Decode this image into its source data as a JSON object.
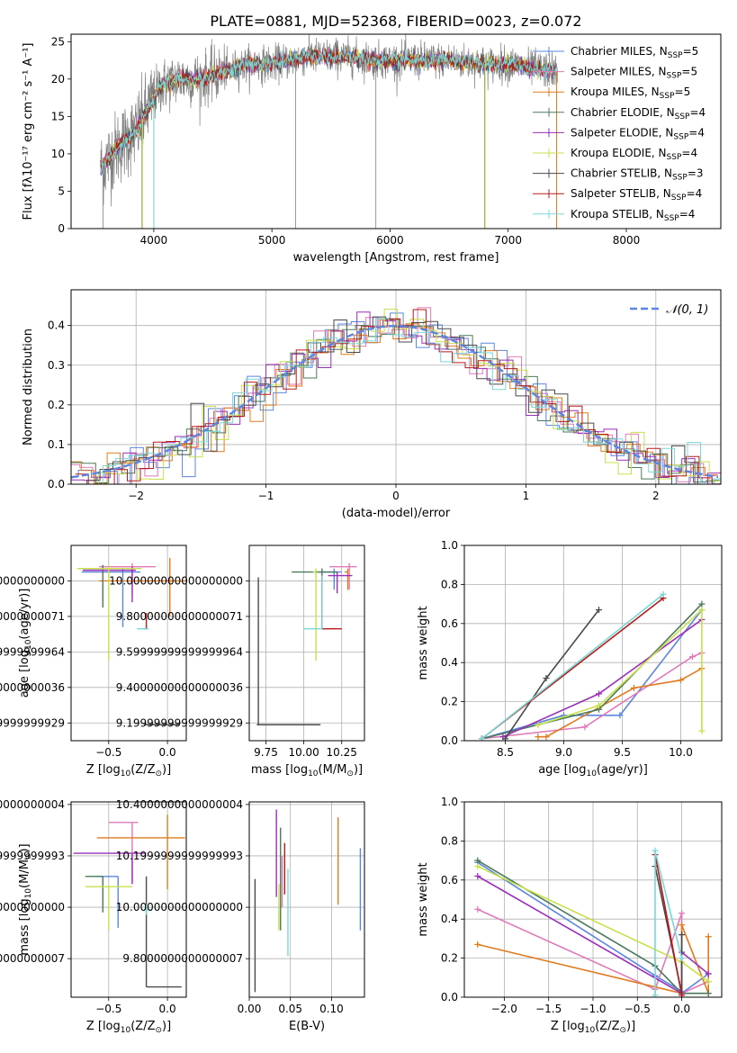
{
  "figure": {
    "title": "PLATE=0881, MJD=52368, FIBERID=0023, z=0.072"
  },
  "colors": {
    "Chabrier MILES": "#5b86e0",
    "Salpeter MILES": "#e07ab8",
    "Kroupa MILES": "#e07b1f",
    "Chabrier ELODIE": "#4a7a5a",
    "Salpeter ELODIE": "#9b2fb8",
    "Kroupa ELODIE": "#c8e04a",
    "Chabrier STELIB": "#4a4a4a",
    "Salpeter STELIB": "#b81a1a",
    "Kroupa STELIB": "#7ad8d8"
  },
  "chart_data": [
    {
      "type": "line",
      "xlabel": "wavelength [Angstrom, rest frame]",
      "ylabel": "Flux [fλ10⁻¹⁷ erg cm⁻² s⁻¹ A⁻¹]",
      "xlim": [
        3300,
        8800
      ],
      "ylim": [
        0,
        26
      ],
      "xticks": [
        4000,
        5000,
        6000,
        7000,
        8000
      ],
      "yticks": [
        0,
        5,
        10,
        15,
        20,
        25
      ],
      "grid": false,
      "legend_placement": "top-right",
      "legend": [
        "Chabrier MILES, N_SSP=5",
        "Salpeter MILES, N_SSP=5",
        "Kroupa MILES, N_SSP=5",
        "Chabrier ELODIE, N_SSP=4",
        "Salpeter ELODIE, N_SSP=4",
        "Kroupa ELODIE, N_SSP=4",
        "Chabrier STELIB, N_SSP=3",
        "Salpeter STELIB, N_SSP=4",
        "Kroupa STELIB, N_SSP=4"
      ],
      "continuum": {
        "x": [
          3550,
          3700,
          3850,
          3950,
          4050,
          4200,
          4400,
          4600,
          4800,
          5000,
          5300,
          5600,
          5900,
          6200,
          6500,
          6800,
          7000,
          7200,
          7400
        ],
        "y": [
          8,
          11,
          13,
          16,
          19,
          20,
          20,
          21,
          22,
          22,
          23,
          23,
          22.5,
          22.5,
          22.5,
          22,
          22,
          21.5,
          21
        ]
      },
      "spikes": [
        {
          "x": 3900,
          "y": 0
        },
        {
          "x": 4000,
          "y": 0
        },
        {
          "x": 5200,
          "y": 0
        },
        {
          "x": 5880,
          "y": 0
        },
        {
          "x": 6800,
          "y": 0
        },
        {
          "x": 7410,
          "y": 0
        },
        {
          "x": 3570,
          "y": 0
        }
      ]
    },
    {
      "type": "line",
      "xlabel": "(data-model)/error",
      "ylabel": "Normed distribution",
      "xlim": [
        -2.5,
        2.5
      ],
      "ylim": [
        0,
        0.49
      ],
      "xticks": [
        -2,
        -1,
        0,
        1,
        2
      ],
      "yticks": [
        0.0,
        0.1,
        0.2,
        0.3,
        0.4
      ],
      "grid": true,
      "legend_placement": "top-right",
      "legend": [
        "𝒩(0, 1)"
      ],
      "normal_curve": {
        "mean": 0,
        "sigma": 1
      }
    },
    {
      "type": "scatter",
      "xlabel": "Z [log10(Z/Z⊙)]",
      "ylabel": "age  [log10(age/yr)]",
      "xlim": [
        -0.82,
        0.16
      ],
      "ylim": [
        9.1,
        10.2
      ],
      "xticks": [
        -0.5,
        0.0
      ],
      "yticks": [
        9.2,
        9.4,
        9.6,
        9.8,
        10.0
      ],
      "grid": true,
      "points": [
        {
          "model": "Chabrier MILES",
          "x": -0.38,
          "xerr": [
            0.35,
            0.15
          ],
          "y": 10.05,
          "yerr": [
            0.31,
            0.02
          ]
        },
        {
          "model": "Salpeter MILES",
          "x": -0.3,
          "xerr": [
            0.28,
            0.2
          ],
          "y": 10.08,
          "yerr": [
            0.15,
            0.02
          ]
        },
        {
          "model": "Kroupa MILES",
          "x": 0.02,
          "xerr": [
            0.6,
            0.14
          ],
          "y": 10.0,
          "yerr": [
            0.2,
            0.13
          ]
        },
        {
          "model": "Chabrier ELODIE",
          "x": -0.55,
          "xerr": [
            0.2,
            0.0
          ],
          "y": 10.07,
          "yerr": [
            0.22,
            0.02
          ]
        },
        {
          "model": "Salpeter ELODIE",
          "x": -0.3,
          "xerr": [
            0.42,
            0.03
          ],
          "y": 10.06,
          "yerr": [
            0.18,
            0.02
          ]
        },
        {
          "model": "Kroupa ELODIE",
          "x": -0.5,
          "xerr": [
            0.27,
            0.28
          ],
          "y": 10.07,
          "yerr": [
            0.52,
            0.02
          ]
        },
        {
          "model": "Chabrier STELIB",
          "x": 0.0,
          "xerr": [
            0.2,
            0.1
          ],
          "y": 9.19,
          "yerr": [
            0.0,
            0.0
          ]
        },
        {
          "model": "Salpeter STELIB",
          "x": -0.18,
          "xerr": [
            0.02,
            0.0
          ],
          "y": 9.73,
          "yerr": [
            0.0,
            0.09
          ]
        },
        {
          "model": "Kroupa STELIB",
          "x": -0.18,
          "xerr": [
            0.08,
            0.02
          ],
          "y": 9.73,
          "yerr": [
            0.0,
            0.0
          ]
        }
      ]
    },
    {
      "type": "scatter",
      "xlabel": "mass [log10(M/M⊙)]",
      "ylabel": "",
      "xlim": [
        9.64,
        10.4
      ],
      "ylim": [
        9.1,
        10.2
      ],
      "xticks": [
        9.75,
        10.0,
        10.25
      ],
      "yticks": [
        9.2,
        9.4,
        9.6,
        9.8,
        10.0
      ],
      "grid": true,
      "points": [
        {
          "model": "Chabrier MILES",
          "x": 10.2,
          "xerr": [
            0.1,
            0.05
          ],
          "y": 10.05,
          "yerr": [
            0.1,
            0.02
          ]
        },
        {
          "model": "Salpeter MILES",
          "x": 10.3,
          "xerr": [
            0.13,
            0.05
          ],
          "y": 10.08,
          "yerr": [
            0.13,
            0.02
          ]
        },
        {
          "model": "Kroupa MILES",
          "x": 10.29,
          "xerr": [
            0.02,
            0.0
          ],
          "y": 10.05,
          "yerr": [
            0.1,
            0.02
          ]
        },
        {
          "model": "Chabrier ELODIE",
          "x": 10.12,
          "xerr": [
            0.2,
            0.1
          ],
          "y": 10.05,
          "yerr": [
            0.05,
            0.02
          ]
        },
        {
          "model": "Salpeter ELODIE",
          "x": 10.22,
          "xerr": [
            0.06,
            0.1
          ],
          "y": 10.03,
          "yerr": [
            0.1,
            0.02
          ]
        },
        {
          "model": "Kroupa ELODIE",
          "x": 10.08,
          "xerr": [
            0.02,
            0.0
          ],
          "y": 10.05,
          "yerr": [
            0.5,
            0.02
          ]
        },
        {
          "model": "Chabrier STELIB",
          "x": 9.7,
          "xerr": [
            0.01,
            0.41
          ],
          "y": 9.19,
          "yerr": [
            0.0,
            0.83
          ]
        },
        {
          "model": "Salpeter STELIB",
          "x": 10.12,
          "xerr": [
            0.0,
            0.13
          ],
          "y": 9.73,
          "yerr": [
            0.0,
            0.3
          ]
        },
        {
          "model": "Kroupa STELIB",
          "x": 10.12,
          "xerr": [
            0.12,
            0.0
          ],
          "y": 9.73,
          "yerr": [
            0.0,
            0.3
          ]
        }
      ]
    },
    {
      "type": "line",
      "xlabel": "age  [log10(age/yr)]",
      "ylabel": "mass weight",
      "xlim": [
        8.15,
        10.35
      ],
      "ylim": [
        0,
        1.0
      ],
      "xticks": [
        8.5,
        9.0,
        9.5,
        10.0
      ],
      "yticks": [
        0.0,
        0.2,
        0.4,
        0.6,
        0.8,
        1.0
      ],
      "grid": true,
      "series": [
        {
          "model": "Chabrier MILES",
          "x": [
            8.3,
            9.0,
            9.48,
            10.18
          ],
          "y": [
            0.01,
            0.13,
            0.13,
            0.67
          ]
        },
        {
          "model": "Salpeter MILES",
          "x": [
            8.3,
            9.18,
            10.1,
            10.18
          ],
          "y": [
            0.01,
            0.07,
            0.43,
            0.45
          ]
        },
        {
          "model": "Kroupa MILES",
          "x": [
            8.78,
            8.85,
            9.6,
            10.0,
            10.18
          ],
          "y": [
            0.02,
            0.02,
            0.27,
            0.31,
            0.37
          ]
        },
        {
          "model": "Chabrier ELODIE",
          "x": [
            8.3,
            9.3,
            10.18
          ],
          "y": [
            0.01,
            0.16,
            0.7
          ]
        },
        {
          "model": "Salpeter ELODIE",
          "x": [
            8.48,
            9.3,
            10.18
          ],
          "y": [
            0.02,
            0.24,
            0.62
          ]
        },
        {
          "model": "Kroupa ELODIE",
          "x": [
            8.78,
            9.3,
            10.18,
            10.18
          ],
          "y": [
            0.08,
            0.18,
            0.67,
            0.05
          ]
        },
        {
          "model": "Chabrier STELIB",
          "x": [
            8.5,
            8.85,
            9.3
          ],
          "y": [
            0.01,
            0.32,
            0.67
          ]
        },
        {
          "model": "Salpeter STELIB",
          "x": [
            8.3,
            9.85
          ],
          "y": [
            0.01,
            0.73
          ]
        },
        {
          "model": "Kroupa STELIB",
          "x": [
            8.3,
            9.85
          ],
          "y": [
            0.01,
            0.75
          ]
        }
      ]
    },
    {
      "type": "scatter",
      "xlabel": "Z [log10(Z/Z⊙)]",
      "ylabel": "mass [log10(M/M⊙)]",
      "xlim": [
        -0.82,
        0.16
      ],
      "ylim": [
        9.65,
        10.41
      ],
      "xticks": [
        -0.5,
        0.0
      ],
      "yticks": [
        9.8,
        10.0,
        10.2,
        10.4
      ],
      "grid": true,
      "points": [
        {
          "model": "Chabrier MILES",
          "x": -0.42,
          "xerr": [
            0.2,
            0.0
          ],
          "y": 10.12,
          "yerr": [
            0.2,
            0.0
          ]
        },
        {
          "model": "Salpeter MILES",
          "x": -0.3,
          "xerr": [
            0.2,
            0.05
          ],
          "y": 10.33,
          "yerr": [
            0.23,
            0.0
          ]
        },
        {
          "model": "Kroupa MILES",
          "x": 0.0,
          "xerr": [
            0.6,
            0.15
          ],
          "y": 10.27,
          "yerr": [
            0.2,
            0.09
          ]
        },
        {
          "model": "Chabrier ELODIE",
          "x": -0.55,
          "xerr": [
            0.15,
            0.0
          ],
          "y": 10.12,
          "yerr": [
            0.14,
            0.0
          ]
        },
        {
          "model": "Salpeter ELODIE",
          "x": -0.3,
          "xerr": [
            0.5,
            0.12
          ],
          "y": 10.21,
          "yerr": [
            0.12,
            0.0
          ]
        },
        {
          "model": "Kroupa ELODIE",
          "x": -0.5,
          "xerr": [
            0.2,
            0.2
          ],
          "y": 10.08,
          "yerr": [
            0.17,
            0.0
          ]
        },
        {
          "model": "Chabrier STELIB",
          "x": -0.18,
          "xerr": [
            0.0,
            0.3
          ],
          "y": 9.69,
          "yerr": [
            0.0,
            0.43
          ]
        },
        {
          "model": "Salpeter STELIB",
          "x": -0.18,
          "xerr": [
            0.0,
            0.0
          ],
          "y": 10.12,
          "yerr": [
            0.0,
            0.0
          ]
        },
        {
          "model": "Kroupa STELIB",
          "x": -0.18,
          "xerr": [
            0.02,
            0.05
          ],
          "y": 9.99,
          "yerr": [
            0.02,
            0.02
          ]
        }
      ]
    },
    {
      "type": "scatter",
      "xlabel": "E(B-V)",
      "ylabel": "",
      "xlim": [
        0.0,
        0.14
      ],
      "ylim": [
        9.65,
        10.41
      ],
      "xticks": [
        0.0,
        0.05,
        0.1
      ],
      "yticks": [
        9.8,
        10.0,
        10.2,
        10.4
      ],
      "grid": true,
      "points": [
        {
          "model": "Chabrier MILES",
          "x": 0.135,
          "y": 10.07,
          "yerr": [
            0.16,
            0.16
          ]
        },
        {
          "model": "Salpeter MILES",
          "x": 0.04,
          "y": 10.1,
          "yerr": [
            0.1,
            0.1
          ]
        },
        {
          "model": "Kroupa MILES",
          "x": 0.108,
          "y": 10.18,
          "yerr": [
            0.17,
            0.17
          ]
        },
        {
          "model": "Chabrier ELODIE",
          "x": 0.038,
          "y": 10.11,
          "yerr": [
            0.2,
            0.2
          ]
        },
        {
          "model": "Salpeter ELODIE",
          "x": 0.033,
          "y": 10.21,
          "yerr": [
            0.17,
            0.17
          ]
        },
        {
          "model": "Kroupa ELODIE",
          "x": 0.036,
          "y": 10.0,
          "yerr": [
            0.09,
            0.09
          ]
        },
        {
          "model": "Chabrier STELIB",
          "x": 0.007,
          "y": 9.89,
          "yerr": [
            0.22,
            0.22
          ]
        },
        {
          "model": "Salpeter STELIB",
          "x": 0.043,
          "y": 10.15,
          "yerr": [
            0.1,
            0.1
          ]
        },
        {
          "model": "Kroupa STELIB",
          "x": 0.047,
          "y": 9.98,
          "yerr": [
            0.17,
            0.17
          ]
        }
      ]
    },
    {
      "type": "line",
      "xlabel": "Z [log10(Z/Z⊙)]",
      "ylabel": "mass weight",
      "xlim": [
        -2.45,
        0.45
      ],
      "ylim": [
        0,
        1.0
      ],
      "xticks": [
        -2.0,
        -1.5,
        -1.0,
        -0.5,
        0.0
      ],
      "yticks": [
        0.0,
        0.2,
        0.4,
        0.6,
        0.8,
        1.0
      ],
      "grid": true,
      "series": [
        {
          "model": "Chabrier MILES",
          "x": [
            -2.3,
            -0.3,
            0.0,
            0.0,
            0.3
          ],
          "y": [
            0.69,
            0.11,
            0.03,
            0.02,
            0.12
          ]
        },
        {
          "model": "Salpeter MILES",
          "x": [
            -2.3,
            -0.3,
            0.0,
            0.0,
            0.3
          ],
          "y": [
            0.45,
            0.04,
            0.43,
            0.02,
            0.08
          ]
        },
        {
          "model": "Kroupa MILES",
          "x": [
            -2.3,
            0.0,
            0.0,
            0.3,
            0.3
          ],
          "y": [
            0.27,
            0.02,
            0.37,
            0.02,
            0.31
          ]
        },
        {
          "model": "Chabrier ELODIE",
          "x": [
            -2.3,
            -0.3,
            0.0,
            0.3
          ],
          "y": [
            0.7,
            0.16,
            0.02,
            0.02
          ]
        },
        {
          "model": "Salpeter ELODIE",
          "x": [
            -2.3,
            0.0,
            0.0,
            0.3
          ],
          "y": [
            0.62,
            0.02,
            0.23,
            0.12
          ]
        },
        {
          "model": "Kroupa ELODIE",
          "x": [
            -2.3,
            0.0,
            0.3
          ],
          "y": [
            0.67,
            0.18,
            0.08
          ]
        },
        {
          "model": "Chabrier STELIB",
          "x": [
            -0.3,
            0.0,
            0.0
          ],
          "y": [
            0.67,
            0.02,
            0.32
          ]
        },
        {
          "model": "Salpeter STELIB",
          "x": [
            -0.3,
            0.0
          ],
          "y": [
            0.73,
            0.01
          ]
        },
        {
          "model": "Kroupa STELIB",
          "x": [
            -0.3,
            -0.3,
            0.0
          ],
          "y": [
            0.01,
            0.75,
            0.2
          ]
        }
      ]
    }
  ]
}
